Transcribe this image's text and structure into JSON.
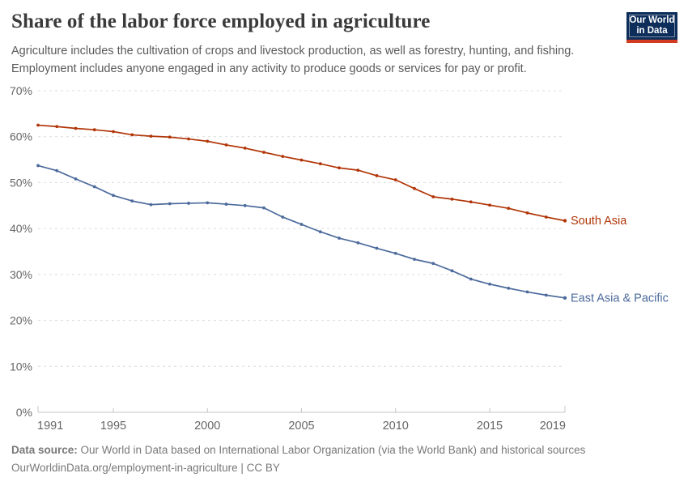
{
  "header": {
    "title": "Share of the labor force employed in agriculture",
    "subtitle_lines": [
      "Agriculture includes the cultivation of crops and livestock production, as well as forestry, hunting, and fishing.",
      "Employment includes anyone engaged in any activity to produce goods or services for pay or profit."
    ]
  },
  "logo": {
    "line1": "Our World",
    "line2": "in Data",
    "background": "#0d2e5a",
    "stripe_color": "#d23a21",
    "text_color": "#ffffff"
  },
  "chart_data": {
    "type": "line",
    "x": [
      1991,
      1992,
      1993,
      1994,
      1995,
      1996,
      1997,
      1998,
      1999,
      2000,
      2001,
      2002,
      2003,
      2004,
      2005,
      2006,
      2007,
      2008,
      2009,
      2010,
      2011,
      2012,
      2013,
      2014,
      2015,
      2016,
      2017,
      2018,
      2019
    ],
    "series": [
      {
        "name": "South Asia",
        "color": "#b13507",
        "values": [
          62.5,
          62.2,
          61.8,
          61.5,
          61.1,
          60.4,
          60.1,
          59.9,
          59.5,
          59.0,
          58.2,
          57.5,
          56.6,
          55.7,
          54.9,
          54.1,
          53.2,
          52.7,
          51.5,
          50.6,
          48.7,
          46.9,
          46.4,
          45.8,
          45.1,
          44.4,
          43.4,
          42.5,
          41.7
        ]
      },
      {
        "name": "East Asia & Pacific",
        "color": "#4c6a9c",
        "values": [
          53.7,
          52.6,
          50.8,
          49.1,
          47.2,
          46.0,
          45.2,
          45.4,
          45.5,
          45.6,
          45.3,
          45.0,
          44.5,
          42.5,
          40.9,
          39.3,
          37.9,
          36.9,
          35.7,
          34.6,
          33.3,
          32.4,
          30.8,
          29.0,
          27.9,
          27.0,
          26.2,
          25.5,
          24.9
        ]
      }
    ],
    "title": "Share of the labor force employed in agriculture",
    "xlabel": "",
    "ylabel": "",
    "xlim": [
      1991,
      2019
    ],
    "ylim": [
      0,
      70
    ],
    "x_ticks": [
      1991,
      1995,
      2000,
      2005,
      2010,
      2015,
      2019
    ],
    "y_ticks": [
      0,
      10,
      20,
      30,
      40,
      50,
      60,
      70
    ],
    "y_tick_suffix": "%",
    "grid": "horizontal dashed",
    "legend_position": "line-end labels",
    "grid_color": "#dcdcdc",
    "axis_color": "#c4c4c4",
    "tick_label_color": "#666666"
  },
  "footer": {
    "source_label": "Data source:",
    "source_text": " Our World in Data based on International Labor Organization (via the World Bank) and historical sources",
    "license_line": "OurWorldinData.org/employment-in-agriculture | CC BY"
  }
}
